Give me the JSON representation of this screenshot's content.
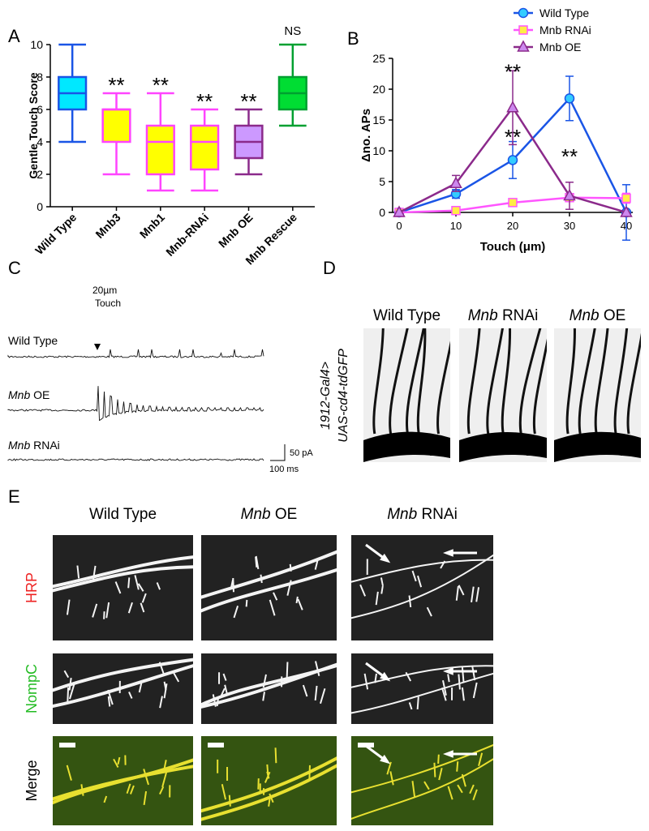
{
  "panel_labels": [
    "A",
    "B",
    "C",
    "D",
    "E"
  ],
  "chart_data": [
    {
      "type": "box",
      "ylabel": "Gentle Touch Score",
      "categories": [
        "Wild Type",
        "Mnb3",
        "Mnb1",
        "Mnb-RNAi",
        "Mnb OE",
        "Mnb Rescue"
      ],
      "whisker_low": [
        4,
        2,
        1,
        1,
        2,
        5
      ],
      "q1": [
        6,
        4,
        2,
        2.3,
        3,
        6
      ],
      "median": [
        7,
        6,
        4,
        4,
        4,
        7
      ],
      "q3": [
        8,
        6,
        5,
        5,
        5,
        8
      ],
      "whisker_high": [
        10,
        7,
        7,
        6,
        6,
        10
      ],
      "colors": [
        "#00e8ff",
        "#ffff00",
        "#ffff00",
        "#ffff00",
        "#cc99ff",
        "#00dd33"
      ],
      "edge_colors": [
        "#1a55e6",
        "#ff44ff",
        "#ff44ff",
        "#ff44ff",
        "#8b2a8b",
        "#00a030"
      ],
      "annotations": [
        null,
        "**",
        "**",
        "**",
        "**",
        "NS"
      ],
      "ylim": [
        0,
        10
      ],
      "yticks": [
        0,
        2,
        4,
        6,
        8,
        10
      ]
    },
    {
      "type": "line",
      "xlabel": "Touch (μm)",
      "ylabel": "Δno. APs",
      "x": [
        0,
        10,
        20,
        30,
        40
      ],
      "xlim": [
        0,
        40
      ],
      "xticks": [
        0,
        10,
        20,
        30,
        40
      ],
      "ylim": [
        0,
        25
      ],
      "yticks": [
        0,
        5,
        10,
        15,
        20,
        25
      ],
      "legend": "upper right",
      "series": [
        {
          "name": "Wild Type",
          "color": "#1a55e6",
          "marker": "circle",
          "marker_color": "#33ccff",
          "values": [
            0,
            3,
            8.5,
            18.5,
            0
          ],
          "errors": [
            0,
            0.7,
            3,
            3.6,
            4.5
          ]
        },
        {
          "name": "Mnb RNAi",
          "color": "#ff55ff",
          "marker": "square",
          "marker_color": "#ffee44",
          "values": [
            0,
            0.3,
            1.6,
            2.4,
            2.3
          ],
          "errors": [
            0,
            0.3,
            0.4,
            0.5,
            0.8
          ]
        },
        {
          "name": "Mnb OE",
          "color": "#8b2a8b",
          "marker": "triangle",
          "marker_color": "#cc88ee",
          "values": [
            0,
            4.7,
            17,
            2.7,
            0
          ],
          "errors": [
            0,
            1.3,
            6,
            2.2,
            0
          ]
        }
      ],
      "annotations": [
        "**",
        "**",
        "**"
      ]
    }
  ],
  "traces": {
    "labels": [
      {
        "text": "Wild Type"
      },
      {
        "em": "Mnb",
        "text": "OE"
      },
      {
        "em": "Mnb",
        "text": "RNAi"
      }
    ],
    "stimulus": [
      "20µm",
      "Touch"
    ],
    "scale_y": "50 pA",
    "scale_x": "100 ms"
  },
  "imaging_d": {
    "columns": [
      {
        "text": "Wild Type"
      },
      {
        "em": "Mnb",
        "text": "RNAi"
      },
      {
        "em": "Mnb",
        "text": "OE"
      }
    ],
    "genotype": [
      "1912-Gal4>",
      "UAS-cd4-tdGFP"
    ]
  },
  "imaging_e": {
    "columns": [
      {
        "text": "Wild Type"
      },
      {
        "em": "Mnb",
        "text": "OE"
      },
      {
        "em": "Mnb",
        "text": "RNAi"
      }
    ],
    "rows": [
      "HRP",
      "NompC",
      "Merge"
    ]
  }
}
